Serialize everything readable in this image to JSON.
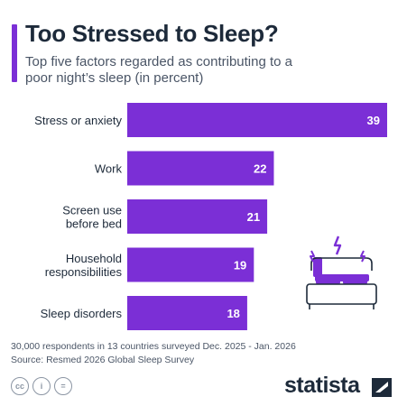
{
  "header": {
    "title": "Too Stressed to Sleep?",
    "subtitle": "Top five factors regarded as contributing to a poor night’s sleep (in percent)"
  },
  "colors": {
    "accent": "#7b2fd6",
    "bar": "#7b2fd6",
    "value_inside": "#ffffff",
    "value_outside": "#1d2a3a",
    "label": "#1d2a3a"
  },
  "chart_data": {
    "type": "bar",
    "orientation": "horizontal",
    "categories": [
      "Stress or anxiety",
      "Work",
      "Screen use before bed",
      "Household responsibilities",
      "Sleep disorders"
    ],
    "category_lines": [
      [
        "Stress or anxiety"
      ],
      [
        "Work"
      ],
      [
        "Screen use",
        "before bed"
      ],
      [
        "Household",
        "responsibilities"
      ],
      [
        "Sleep disorders"
      ]
    ],
    "values": [
      39,
      22,
      21,
      19,
      18
    ],
    "xlim": [
      0,
      39
    ],
    "grid": false,
    "legend": "none"
  },
  "illustration": {
    "icon": "bed-icon",
    "accent_icon": "lightning-icon"
  },
  "footer": {
    "note": "30,000 respondents in 13 countries surveyed Dec. 2025 - Jan. 2026",
    "source": "Source: Resmed 2026 Global Sleep Survey",
    "license_icons": [
      "cc-icon",
      "attribution-icon",
      "no-derivatives-icon"
    ],
    "license_labels": [
      "cc",
      "i",
      "="
    ],
    "brand": "statista"
  }
}
